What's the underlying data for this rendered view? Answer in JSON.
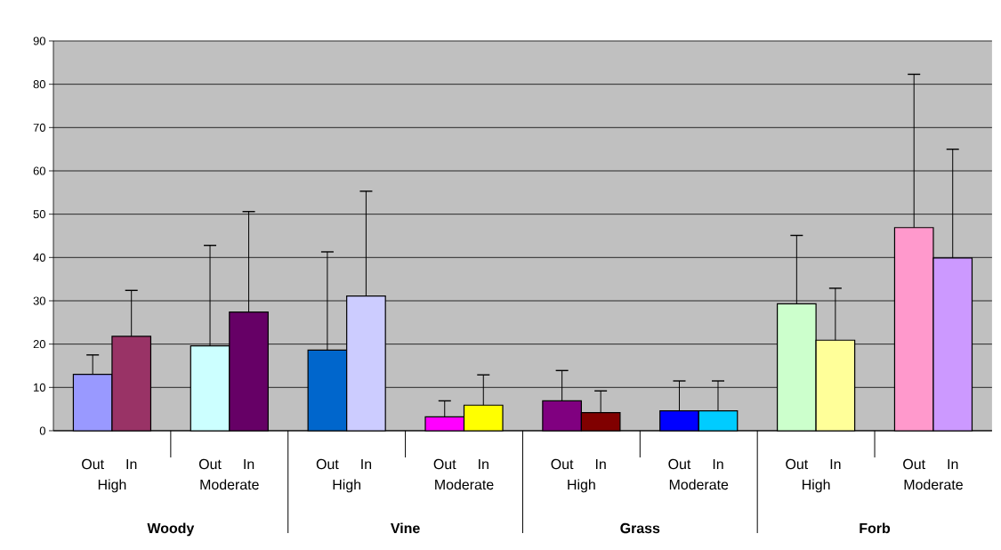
{
  "chart_data": {
    "type": "bar",
    "categories": [
      "Out",
      "In",
      "Out",
      "In",
      "Out",
      "In",
      "Out",
      "In",
      "Out",
      "In",
      "Out",
      "In",
      "Out",
      "In",
      "Out",
      "In"
    ],
    "values": [
      13,
      21.8,
      19.6,
      27.4,
      18.6,
      31.1,
      3.2,
      5.9,
      6.9,
      4.2,
      4.6,
      4.6,
      29.3,
      20.9,
      46.9,
      39.9
    ],
    "errors": [
      [
        13,
        17.5
      ],
      [
        21.8,
        32.4
      ],
      [
        19.6,
        42.8
      ],
      [
        27.4,
        50.6
      ],
      [
        18.6,
        41.3
      ],
      [
        31.1,
        55.3
      ],
      [
        3.2,
        6.9
      ],
      [
        5.9,
        12.9
      ],
      [
        6.9,
        13.9
      ],
      [
        4.2,
        9.2
      ],
      [
        4.6,
        11.5
      ],
      [
        4.6,
        11.5
      ],
      [
        29.3,
        45.1
      ],
      [
        20.9,
        32.9
      ],
      [
        46.9,
        82.3
      ],
      [
        39.9,
        65
      ]
    ],
    "colors": [
      "#9999ff",
      "#993366",
      "#ccffff",
      "#660066",
      "#0066cc",
      "#ccccff",
      "#ff00ff",
      "#ffff00",
      "#800080",
      "#800000",
      "#0000ff",
      "#00ccff",
      "#ccffcc",
      "#ffff99",
      "#ff99cc",
      "#cc99ff"
    ],
    "annotations": [
      "High",
      "Moderate",
      "High",
      "Moderate",
      "High",
      "Moderate",
      "High",
      "Moderate",
      "Woody",
      "Vine",
      "Grass",
      "Forb"
    ],
    "ylim": [
      0,
      90
    ],
    "yticks": [
      0,
      10,
      20,
      30,
      40,
      50,
      60,
      70,
      80,
      90
    ],
    "grid": "y"
  }
}
